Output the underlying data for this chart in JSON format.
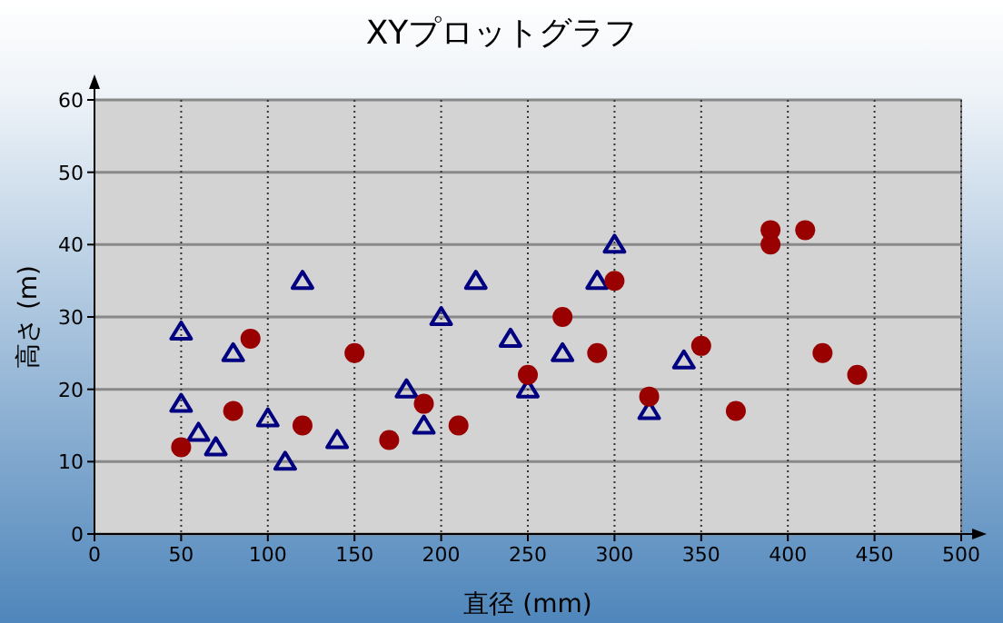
{
  "chart_data": {
    "type": "scatter",
    "title": "XYプロットグラフ",
    "xlabel": "直径 (mm)",
    "ylabel": "高さ (m)",
    "xlim": [
      0,
      500
    ],
    "xticks": [
      0,
      50,
      100,
      150,
      200,
      250,
      300,
      350,
      400,
      450,
      500
    ],
    "ylim": [
      0,
      60
    ],
    "yticks": [
      0,
      10,
      20,
      30,
      40,
      50,
      60
    ],
    "grid": true,
    "series": [
      {
        "color": "#000080",
        "marker": "triangle",
        "x": [
          50,
          50,
          60,
          70,
          80,
          100,
          110,
          120,
          140,
          180,
          190,
          200,
          220,
          240,
          250,
          270,
          290,
          300,
          320,
          340
        ],
        "values": [
          28,
          18,
          14,
          12,
          25,
          16,
          10,
          35,
          13,
          20,
          15,
          30,
          35,
          27,
          20,
          25,
          35,
          40,
          17,
          24
        ]
      },
      {
        "color": "#990000",
        "marker": "circle",
        "x": [
          50,
          80,
          90,
          120,
          150,
          170,
          190,
          210,
          250,
          270,
          290,
          300,
          320,
          350,
          370,
          390,
          390,
          410,
          420,
          440
        ],
        "values": [
          12,
          17,
          27,
          15,
          25,
          13,
          18,
          15,
          22,
          30,
          25,
          35,
          19,
          26,
          17,
          42,
          40,
          42,
          25,
          22
        ]
      }
    ]
  }
}
